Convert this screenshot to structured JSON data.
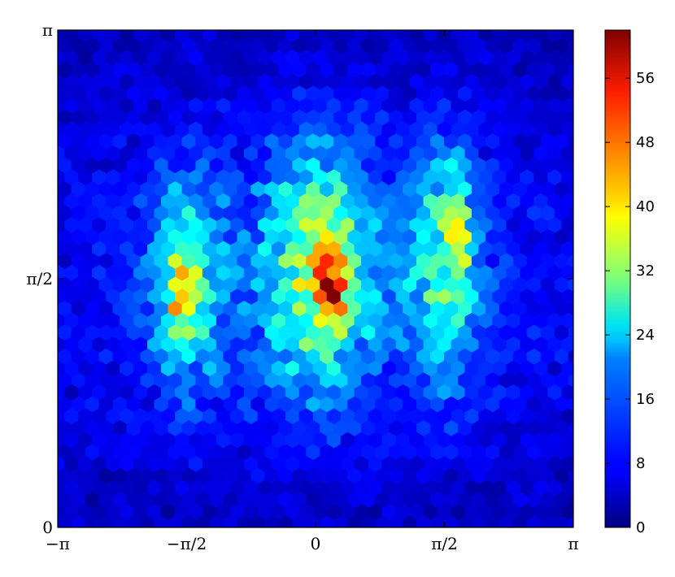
{
  "chart_data": {
    "type": "heatmap",
    "subtype": "hexbin",
    "title": "",
    "xlabel": "",
    "ylabel": "",
    "xlim": [
      -3.14159,
      3.14159
    ],
    "ylim": [
      0,
      3.14159
    ],
    "xticks": [
      {
        "value": -3.14159,
        "label": "−π"
      },
      {
        "value": -1.5708,
        "label": "−π/2"
      },
      {
        "value": 0,
        "label": "0"
      },
      {
        "value": 1.5708,
        "label": "π/2"
      },
      {
        "value": 3.14159,
        "label": "π"
      }
    ],
    "yticks": [
      {
        "value": 0,
        "label": "0"
      },
      {
        "value": 1.5708,
        "label": "π/2"
      },
      {
        "value": 3.14159,
        "label": "π"
      }
    ],
    "colormap": "jet",
    "color_range": [
      0,
      62
    ],
    "colorbar_ticks": [
      "0",
      "8",
      "16",
      "24",
      "32",
      "40",
      "48",
      "56"
    ],
    "colorbar_tick_values": [
      0,
      8,
      16,
      24,
      32,
      40,
      48,
      56
    ],
    "grid": false,
    "hotspots": [
      {
        "x": -1.5708,
        "y": 1.55,
        "peak": 46,
        "note": "left lobe"
      },
      {
        "x": 0.2,
        "y": 1.5,
        "peak": 62,
        "note": "central maximum"
      },
      {
        "x": 1.5708,
        "y": 1.7,
        "peak": 38,
        "note": "right lobe"
      }
    ],
    "background_count": 6
  }
}
